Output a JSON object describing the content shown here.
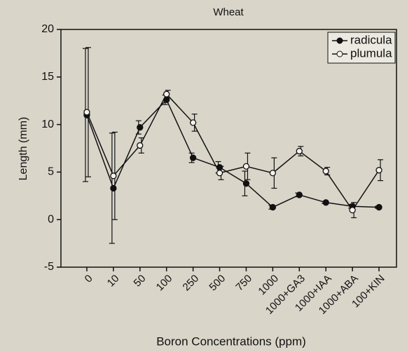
{
  "chart_data": {
    "type": "line",
    "title": "Wheat",
    "x_label": "Boron Concentrations (ppm)",
    "y_label": "Length (mm)",
    "categories": [
      "0",
      "10",
      "50",
      "100",
      "250",
      "500",
      "750",
      "1000",
      "1000+GA3",
      "1000+IAA",
      "1000+ABA",
      "100+KIN"
    ],
    "series": [
      {
        "name": "radicula",
        "color": "#111111",
        "marker": "filled",
        "values": [
          11,
          3.3,
          9.7,
          12.6,
          6.5,
          5.5,
          3.8,
          1.3,
          2.6,
          1.8,
          1.4,
          1.3
        ],
        "errors": [
          7,
          5.8,
          0.7,
          0.5,
          0.5,
          0.6,
          1.3,
          0.2,
          0.2,
          0.1,
          0.2,
          0.1
        ]
      },
      {
        "name": "plumula",
        "color": "#111111",
        "marker": "open",
        "values": [
          11.3,
          4.6,
          7.8,
          13.2,
          10.2,
          4.9,
          5.6,
          4.9,
          7.2,
          5.1,
          1.0,
          5.2
        ],
        "errors": [
          6.8,
          4.6,
          0.8,
          0.4,
          0.9,
          0.7,
          1.4,
          1.6,
          0.5,
          0.4,
          0.8,
          1.1
        ]
      }
    ],
    "ylim": [
      -5,
      20
    ],
    "yticks": [
      -5,
      0,
      5,
      10,
      15,
      20
    ],
    "legend": "upper right"
  }
}
